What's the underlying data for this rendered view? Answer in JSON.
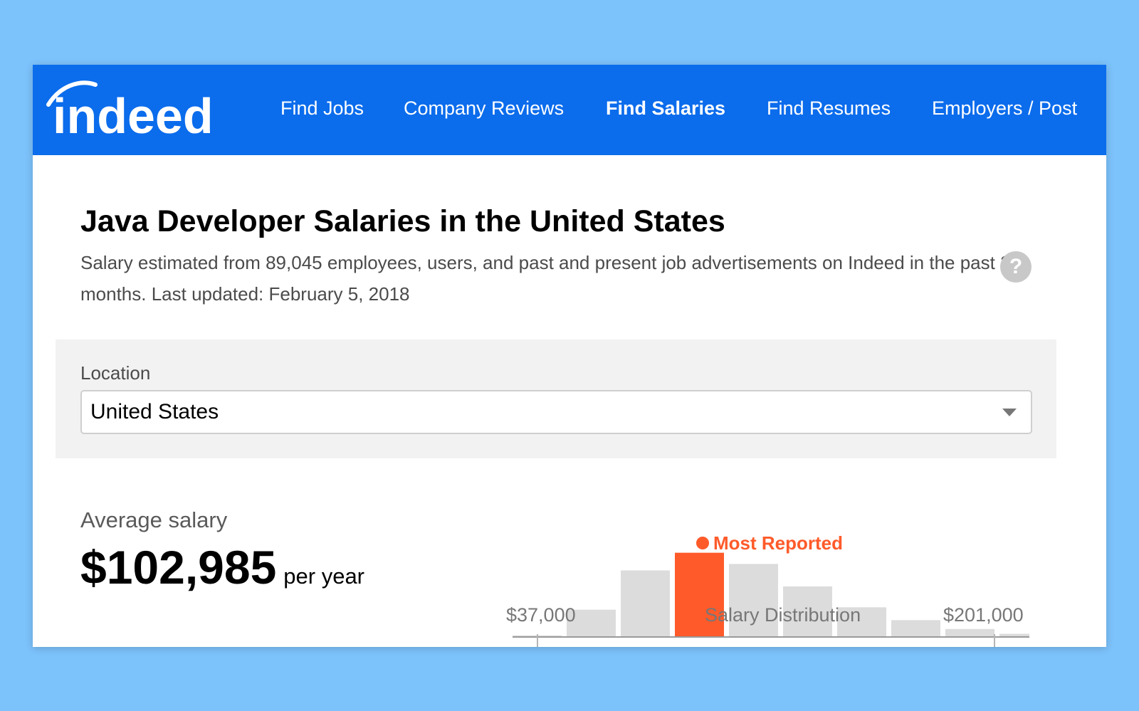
{
  "nav": {
    "logo_text": "indeed",
    "items": [
      {
        "label": "Find Jobs",
        "active": false
      },
      {
        "label": "Company Reviews",
        "active": false
      },
      {
        "label": "Find Salaries",
        "active": true
      },
      {
        "label": "Find Resumes",
        "active": false
      },
      {
        "label": "Employers / Post",
        "active": false
      }
    ]
  },
  "page": {
    "title": "Java Developer Salaries in the United States",
    "subtitle": "Salary estimated from 89,045 employees, users, and past and present job advertisements on Indeed in the past 24 months. Last updated: February 5, 2018",
    "help_icon": "?"
  },
  "location": {
    "label": "Location",
    "selected": "United States"
  },
  "salary": {
    "label": "Average salary",
    "amount": "$102,985",
    "period": "per year"
  },
  "colors": {
    "brand_blue": "#0b6cec",
    "background": "#7cc2fb",
    "highlight": "#ff5a2a",
    "bar_gray": "#dcdcdc"
  },
  "chart_data": {
    "type": "bar",
    "title": "Salary Distribution",
    "min_label": "$37,000",
    "max_label": "$201,000",
    "highlight_label": "Most Reported",
    "highlight_index": 3,
    "values": [
      2,
      34,
      83,
      105,
      91,
      63,
      37,
      21,
      10,
      4
    ],
    "ylim": [
      0,
      110
    ]
  }
}
